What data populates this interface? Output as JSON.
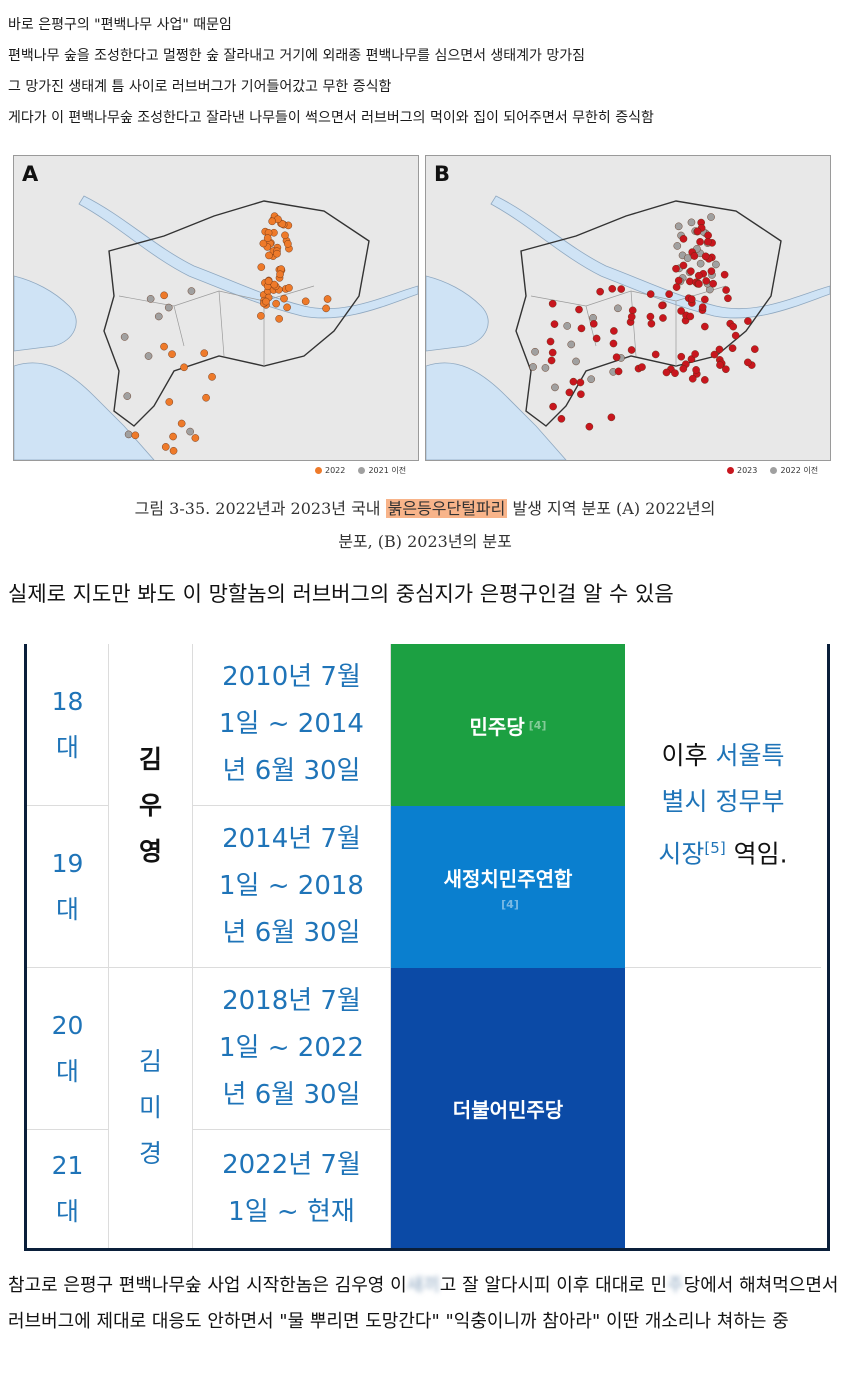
{
  "intro_lines": [
    "바로 은평구의 \"편백나무 사업\" 때문임",
    "편백나무 숲을 조성한다고 멀쩡한 숲 잘라내고 거기에 외래종 편백나무를 심으면서 생태계가 망가짐",
    "그 망가진 생태계 틈 사이로 러브버그가 기어들어갔고 무한 증식함",
    "게다가 이 편백나무숲 조성한다고 잘라낸 나무들이 썩으면서 러브버그의 먹이와 집이 되어주면서 무한히 증식함"
  ],
  "figure": {
    "panel_a": {
      "letter": "A",
      "legend_new": "2022",
      "legend_old": "2021 이전"
    },
    "panel_b": {
      "letter": "B",
      "legend_new": "2023",
      "legend_old": "2022 이전"
    },
    "colors": {
      "orange": "#ee7a2a",
      "red": "#c8161e",
      "gray": "#a0a0a0",
      "water": "#cfe3f5",
      "land": "#e8e8e8"
    },
    "caption_line1_pre": "그림 3-35. 2022년과 2023년 국내",
    "caption_highlight": "붉은등우단털파리",
    "caption_line1_post": "발생 지역 분포 (A) 2022년의",
    "caption_line2": "분포, (B) 2023년의 분포"
  },
  "headline": "실제로 지도만 봐도 이 망할놈의 러브버그의 중심지가 은평구인걸 알 수 있음",
  "table": {
    "rows": [
      {
        "num_top": "18",
        "num_bottom": "대",
        "term_lines": [
          "2010년 7월",
          "1일 ~ 2014",
          "년 6월 30일"
        ]
      },
      {
        "num_top": "19",
        "num_bottom": "대",
        "term_lines": [
          "2014년 7월",
          "1일 ~ 2018",
          "년 6월 30일"
        ]
      },
      {
        "num_top": "20",
        "num_bottom": "대",
        "term_lines": [
          "2018년 7월",
          "1일 ~ 2022",
          "년 6월 30일"
        ]
      },
      {
        "num_top": "21",
        "num_bottom": "대",
        "term_lines": [
          "2022년 7월",
          "1일 ~ 현재"
        ]
      }
    ],
    "names": [
      {
        "chars": [
          "김",
          "우",
          "영"
        ]
      },
      {
        "chars": [
          "김",
          "미",
          "경"
        ]
      }
    ],
    "parties": [
      {
        "label": "민주당",
        "footnote": "[4]",
        "color": "#1ca042"
      },
      {
        "label": "새정치민주연합",
        "footnote": "[4]",
        "color": "#0a7fcf"
      },
      {
        "label": "더불어민주당",
        "color": "#0b4aa6"
      }
    ],
    "note": {
      "prefix": "이후",
      "link1": "서울특",
      "link2": "별시 정무부",
      "link3": "시장",
      "sup": "[5]",
      "suffix": "역임."
    }
  },
  "footer": {
    "text1": "참고로 은평구 편백나무숲 사업 시작한놈은 김우영 이",
    "blur1": "새끼",
    "text2": "고 잘 알다시피 이후 대대로 민",
    "blur2": "주",
    "text3": "당에서 해쳐먹으면서 러브버그에 제대로 대응도 안하면서 \"물 뿌리면 도망간다\" \"익충이니까 참아라\" 이딴 개소리나 쳐하는 중"
  }
}
